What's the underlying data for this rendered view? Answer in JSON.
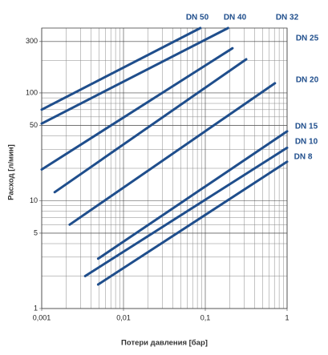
{
  "chart_data": {
    "type": "line",
    "log_x": true,
    "log_y": true,
    "grid": true,
    "x_label": "Потери давления [бар]",
    "y_label": "Расход [л/мин]",
    "xlim": [
      0.001,
      1
    ],
    "ylim": [
      1,
      400
    ],
    "xticks": [
      {
        "value": 0.001,
        "label": "0,001"
      },
      {
        "value": 0.01,
        "label": "0,01"
      },
      {
        "value": 0.1,
        "label": "0,1"
      },
      1
    ],
    "yticks": [
      1,
      5,
      10,
      50,
      100,
      300
    ],
    "series": [
      {
        "name": "DN 50",
        "color": "#1f4e8c",
        "x": [
          0.001,
          0.087
        ],
        "values": [
          70,
          400
        ]
      },
      {
        "name": "DN 40",
        "color": "#1f4e8c",
        "x": [
          0.001,
          0.19
        ],
        "values": [
          52,
          400
        ]
      },
      {
        "name": "DN 32",
        "color": "#1f4e8c",
        "x": [
          0.001,
          0.215
        ],
        "values": [
          19.5,
          260
        ]
      },
      {
        "name": "DN 25",
        "color": "#1f4e8c",
        "x": [
          0.00144,
          0.316
        ],
        "values": [
          12,
          205
        ]
      },
      {
        "name": "DN 20",
        "color": "#1f4e8c",
        "x": [
          0.0022,
          0.71
        ],
        "values": [
          6,
          123
        ]
      },
      {
        "name": "DN 15",
        "color": "#1f4e8c",
        "x": [
          0.0049,
          1
        ],
        "values": [
          2.9,
          44
        ]
      },
      {
        "name": "DN 10",
        "color": "#1f4e8c",
        "x": [
          0.0034,
          1
        ],
        "values": [
          2,
          31
        ]
      },
      {
        "name": "DN 8",
        "color": "#1f4e8c",
        "x": [
          0.0049,
          1
        ],
        "values": [
          1.67,
          23
        ]
      }
    ]
  }
}
